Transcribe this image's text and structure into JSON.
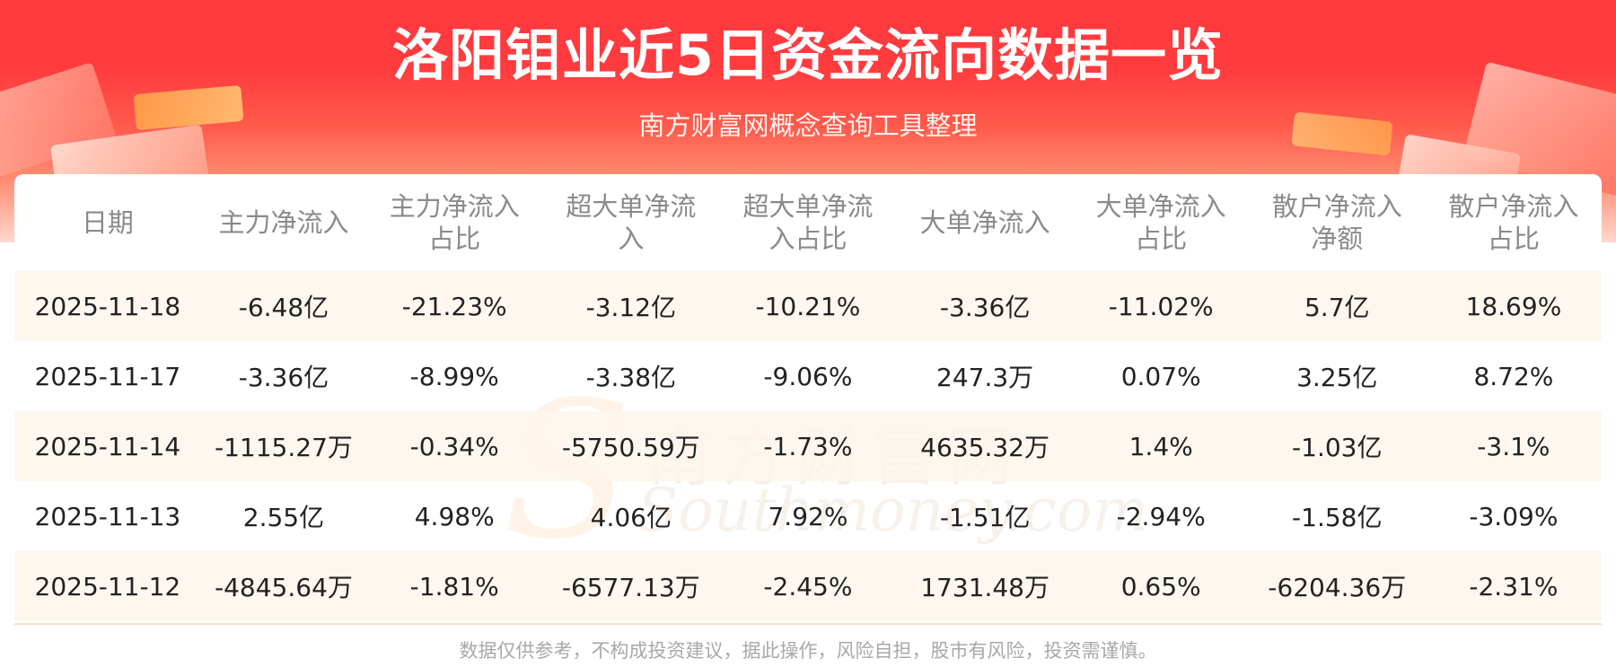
{
  "header": {
    "title": "洛阳钼业近5日资金流向数据一览",
    "subtitle": "南方财富网概念查询工具整理"
  },
  "table": {
    "columns": [
      [
        "日期"
      ],
      [
        "主力净流入"
      ],
      [
        "主力净流入",
        "占比"
      ],
      [
        "超大单净流",
        "入"
      ],
      [
        "超大单净流",
        "入占比"
      ],
      [
        "大单净流入"
      ],
      [
        "大单净流入",
        "占比"
      ],
      [
        "散户净流入",
        "净额"
      ],
      [
        "散户净流入",
        "占比"
      ]
    ],
    "rows": [
      [
        "2025-11-18",
        "-6.48亿",
        "-21.23%",
        "-3.12亿",
        "-10.21%",
        "-3.36亿",
        "-11.02%",
        "5.7亿",
        "18.69%"
      ],
      [
        "2025-11-17",
        "-3.36亿",
        "-8.99%",
        "-3.38亿",
        "-9.06%",
        "247.3万",
        "0.07%",
        "3.25亿",
        "8.72%"
      ],
      [
        "2025-11-14",
        "-1115.27万",
        "-0.34%",
        "-5750.59万",
        "-1.73%",
        "4635.32万",
        "1.4%",
        "-1.03亿",
        "-3.1%"
      ],
      [
        "2025-11-13",
        "2.55亿",
        "4.98%",
        "4.06亿",
        "7.92%",
        "-1.51亿",
        "-2.94%",
        "-1.58亿",
        "-3.09%"
      ],
      [
        "2025-11-12",
        "-4845.64万",
        "-1.81%",
        "-6577.13万",
        "-2.45%",
        "1731.48万",
        "0.65%",
        "-6204.36万",
        "-2.31%"
      ]
    ]
  },
  "watermark": {
    "cn": "南方财富网",
    "en": "Southmoney.com",
    "initial": "S"
  },
  "footer": {
    "disclaimer": "数据仅供参考，不构成投资建议，据此操作，风险自担，股市有风险，投资需谨慎。"
  },
  "colors": {
    "header_red": "#ff3a3f",
    "row_tint": "#fef6ec",
    "text": "#222222",
    "header_text": "#8a8a8a"
  }
}
